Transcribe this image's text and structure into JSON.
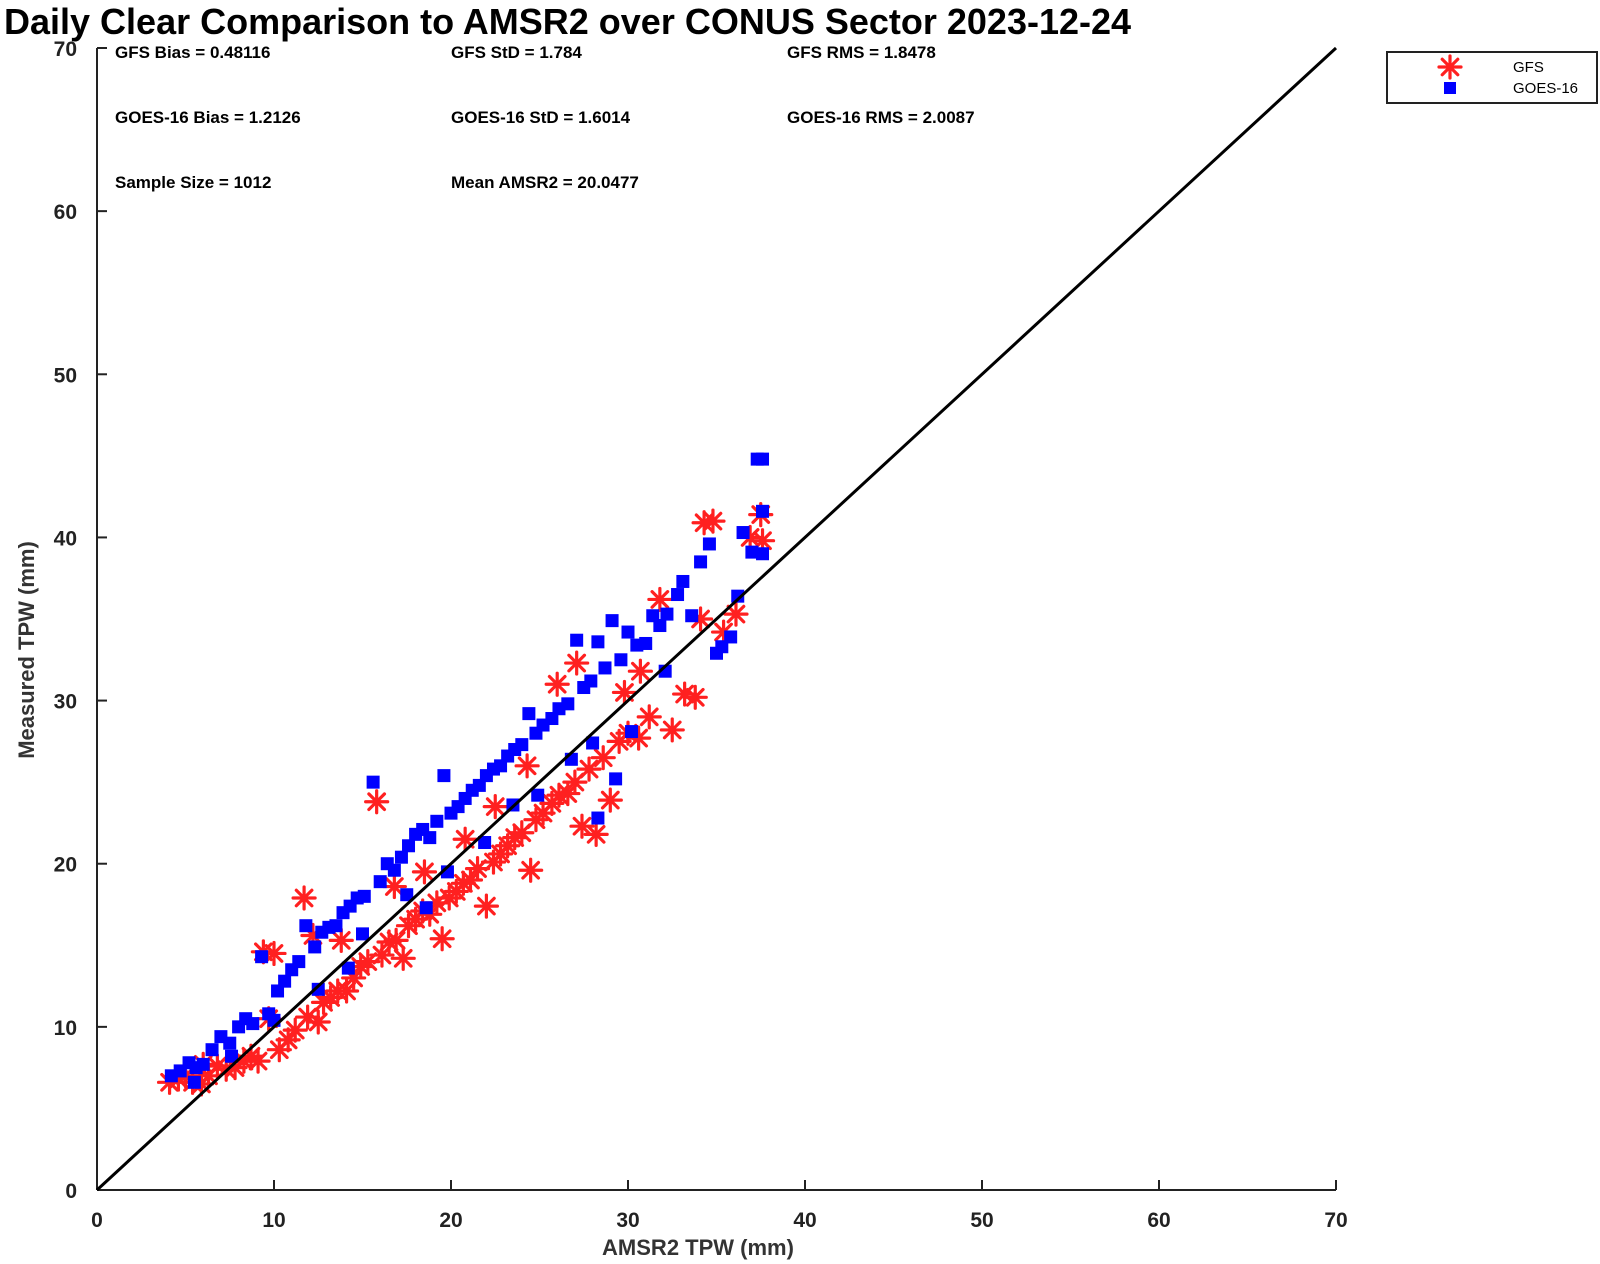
{
  "chart_data": {
    "type": "scatter",
    "title": "Daily Clear Comparison to AMSR2 over CONUS Sector 2023-12-24",
    "xlabel": "AMSR2 TPW (mm)",
    "ylabel": "Measured TPW (mm)",
    "xlim": [
      0,
      70
    ],
    "ylim": [
      0,
      70
    ],
    "xticks": [
      "0",
      "10",
      "20",
      "30",
      "40",
      "50",
      "60",
      "70"
    ],
    "yticks": [
      "0",
      "10",
      "20",
      "30",
      "40",
      "50",
      "60",
      "70"
    ],
    "grid": false,
    "legend_position": "outside top-right",
    "reference_line": {
      "from": [
        0,
        0
      ],
      "to": [
        70,
        70
      ]
    },
    "stats": {
      "gfs_bias": "GFS Bias = 0.48116",
      "gfs_std": "GFS StD = 1.784",
      "gfs_rms": "GFS RMS = 1.8478",
      "goes_bias": "GOES-16 Bias = 1.2126",
      "goes_std": "GOES-16 StD = 1.6014",
      "goes_rms": "GOES-16 RMS = 2.0087",
      "sample_size": "Sample Size = 1012",
      "mean_amsr2": "Mean AMSR2 = 20.0477"
    },
    "series": [
      {
        "name": "GFS",
        "color": "#ff2020",
        "marker": "asterisk",
        "points": [
          [
            4.1,
            6.6
          ],
          [
            4.6,
            6.8
          ],
          [
            5.0,
            7.0
          ],
          [
            5.4,
            6.6
          ],
          [
            5.9,
            6.5
          ],
          [
            6.3,
            7.0
          ],
          [
            6.8,
            7.6
          ],
          [
            7.3,
            7.4
          ],
          [
            7.8,
            7.5
          ],
          [
            8.3,
            7.9
          ],
          [
            8.7,
            8.2
          ],
          [
            9.1,
            7.9
          ],
          [
            9.4,
            14.6
          ],
          [
            10.0,
            14.5
          ],
          [
            10.3,
            8.6
          ],
          [
            10.8,
            9.2
          ],
          [
            11.2,
            9.8
          ],
          [
            11.7,
            17.9
          ],
          [
            11.9,
            10.6
          ],
          [
            12.2,
            15.6
          ],
          [
            12.5,
            10.3
          ],
          [
            12.8,
            11.5
          ],
          [
            13.2,
            11.8
          ],
          [
            13.6,
            12.2
          ],
          [
            14.1,
            12.2
          ],
          [
            14.5,
            13.0
          ],
          [
            14.9,
            13.7
          ],
          [
            15.3,
            14.0
          ],
          [
            15.8,
            23.8
          ],
          [
            16.1,
            14.4
          ],
          [
            16.5,
            15.2
          ],
          [
            16.9,
            15.3
          ],
          [
            17.3,
            14.2
          ],
          [
            17.6,
            16.2
          ],
          [
            18.0,
            16.6
          ],
          [
            18.4,
            17.1
          ],
          [
            18.8,
            16.9
          ],
          [
            19.2,
            17.6
          ],
          [
            19.5,
            15.4
          ],
          [
            19.9,
            17.9
          ],
          [
            20.3,
            18.3
          ],
          [
            20.7,
            18.8
          ],
          [
            21.1,
            19.0
          ],
          [
            21.5,
            19.7
          ],
          [
            22.0,
            17.4
          ],
          [
            22.4,
            20.1
          ],
          [
            22.8,
            20.6
          ],
          [
            23.2,
            21.1
          ],
          [
            23.6,
            21.6
          ],
          [
            24.0,
            21.9
          ],
          [
            24.5,
            19.6
          ],
          [
            24.8,
            22.7
          ],
          [
            25.2,
            23.1
          ],
          [
            25.7,
            23.7
          ],
          [
            26.1,
            24.2
          ],
          [
            26.6,
            24.3
          ],
          [
            27.0,
            25.0
          ],
          [
            27.4,
            22.3
          ],
          [
            27.8,
            25.8
          ],
          [
            28.2,
            21.8
          ],
          [
            28.6,
            26.5
          ],
          [
            29.0,
            23.9
          ],
          [
            29.5,
            27.5
          ],
          [
            30.0,
            28.0
          ],
          [
            30.6,
            27.7
          ],
          [
            31.2,
            29.0
          ],
          [
            31.8,
            36.2
          ],
          [
            32.5,
            28.2
          ],
          [
            33.2,
            30.4
          ],
          [
            33.8,
            30.2
          ],
          [
            34.3,
            40.9
          ],
          [
            34.8,
            41.0
          ],
          [
            35.4,
            34.2
          ],
          [
            36.1,
            35.3
          ],
          [
            36.9,
            40.0
          ],
          [
            37.5,
            41.4
          ],
          [
            37.6,
            39.8
          ],
          [
            34.1,
            35.0
          ],
          [
            27.1,
            32.3
          ],
          [
            26.0,
            31.0
          ],
          [
            22.5,
            23.5
          ],
          [
            18.5,
            19.5
          ],
          [
            16.8,
            18.6
          ],
          [
            13.8,
            15.3
          ],
          [
            9.7,
            10.5
          ],
          [
            6.0,
            7.7
          ],
          [
            30.7,
            31.8
          ],
          [
            29.8,
            30.5
          ],
          [
            24.3,
            26.0
          ],
          [
            20.8,
            21.5
          ]
        ]
      },
      {
        "name": "GOES-16",
        "color": "#0000ff",
        "marker": "square",
        "points": [
          [
            4.2,
            7.0
          ],
          [
            4.7,
            7.3
          ],
          [
            5.2,
            7.8
          ],
          [
            5.6,
            7.5
          ],
          [
            6.0,
            7.7
          ],
          [
            6.5,
            8.6
          ],
          [
            7.0,
            9.4
          ],
          [
            7.5,
            9.0
          ],
          [
            8.0,
            10.0
          ],
          [
            8.4,
            10.5
          ],
          [
            8.8,
            10.2
          ],
          [
            9.3,
            14.3
          ],
          [
            9.7,
            10.8
          ],
          [
            10.2,
            12.2
          ],
          [
            10.6,
            12.8
          ],
          [
            11.0,
            13.5
          ],
          [
            11.4,
            14.0
          ],
          [
            11.8,
            16.2
          ],
          [
            12.3,
            14.9
          ],
          [
            12.7,
            15.8
          ],
          [
            13.1,
            16.1
          ],
          [
            13.5,
            16.2
          ],
          [
            13.9,
            17.0
          ],
          [
            14.3,
            17.4
          ],
          [
            14.7,
            17.9
          ],
          [
            15.1,
            18.0
          ],
          [
            15.6,
            25.0
          ],
          [
            16.0,
            18.9
          ],
          [
            16.4,
            20.0
          ],
          [
            16.8,
            19.6
          ],
          [
            17.2,
            20.4
          ],
          [
            17.6,
            21.1
          ],
          [
            18.0,
            21.8
          ],
          [
            18.4,
            22.1
          ],
          [
            18.8,
            21.6
          ],
          [
            19.2,
            22.6
          ],
          [
            19.6,
            25.4
          ],
          [
            20.0,
            23.1
          ],
          [
            20.4,
            23.5
          ],
          [
            20.8,
            24.0
          ],
          [
            21.2,
            24.5
          ],
          [
            21.6,
            24.8
          ],
          [
            22.0,
            25.4
          ],
          [
            22.4,
            25.8
          ],
          [
            22.8,
            26.0
          ],
          [
            23.2,
            26.6
          ],
          [
            23.6,
            27.0
          ],
          [
            24.0,
            27.3
          ],
          [
            24.4,
            29.2
          ],
          [
            24.8,
            28.0
          ],
          [
            25.2,
            28.5
          ],
          [
            25.7,
            28.9
          ],
          [
            26.1,
            29.5
          ],
          [
            26.6,
            29.8
          ],
          [
            27.1,
            33.7
          ],
          [
            27.5,
            30.8
          ],
          [
            27.9,
            31.2
          ],
          [
            28.3,
            22.8
          ],
          [
            28.3,
            33.6
          ],
          [
            28.7,
            32.0
          ],
          [
            29.1,
            34.9
          ],
          [
            29.3,
            25.2
          ],
          [
            29.6,
            32.5
          ],
          [
            30.0,
            34.2
          ],
          [
            30.5,
            33.4
          ],
          [
            31.0,
            33.5
          ],
          [
            31.4,
            35.2
          ],
          [
            31.8,
            34.6
          ],
          [
            32.2,
            35.3
          ],
          [
            32.8,
            36.5
          ],
          [
            33.1,
            37.3
          ],
          [
            33.6,
            35.2
          ],
          [
            34.1,
            38.5
          ],
          [
            34.6,
            39.6
          ],
          [
            35.0,
            32.9
          ],
          [
            35.3,
            33.3
          ],
          [
            35.8,
            33.9
          ],
          [
            36.2,
            36.4
          ],
          [
            36.5,
            40.3
          ],
          [
            37.0,
            39.1
          ],
          [
            37.3,
            44.8
          ],
          [
            37.6,
            44.8
          ],
          [
            37.6,
            41.6
          ],
          [
            37.6,
            39.0
          ],
          [
            30.2,
            28.1
          ],
          [
            26.8,
            26.4
          ],
          [
            23.5,
            23.6
          ],
          [
            19.8,
            19.5
          ],
          [
            17.5,
            18.1
          ],
          [
            15.0,
            15.7
          ],
          [
            12.5,
            12.3
          ],
          [
            10.0,
            10.4
          ],
          [
            7.6,
            8.2
          ],
          [
            5.5,
            6.6
          ],
          [
            21.9,
            21.3
          ],
          [
            24.9,
            24.2
          ],
          [
            28.0,
            27.4
          ],
          [
            32.1,
            31.8
          ],
          [
            18.6,
            17.3
          ],
          [
            14.2,
            13.6
          ]
        ]
      }
    ]
  }
}
